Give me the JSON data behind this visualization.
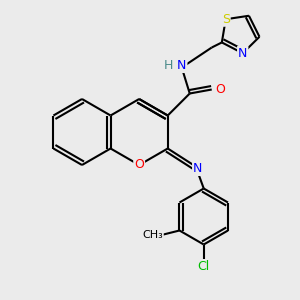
{
  "bg_color": "#ebebeb",
  "bond_color": "#000000",
  "atom_colors": {
    "N": "#0000ff",
    "O": "#ff0000",
    "S": "#cccc00",
    "Cl": "#00bb00",
    "H": "#4a8a8a",
    "C": "#000000"
  },
  "lw": 1.5
}
